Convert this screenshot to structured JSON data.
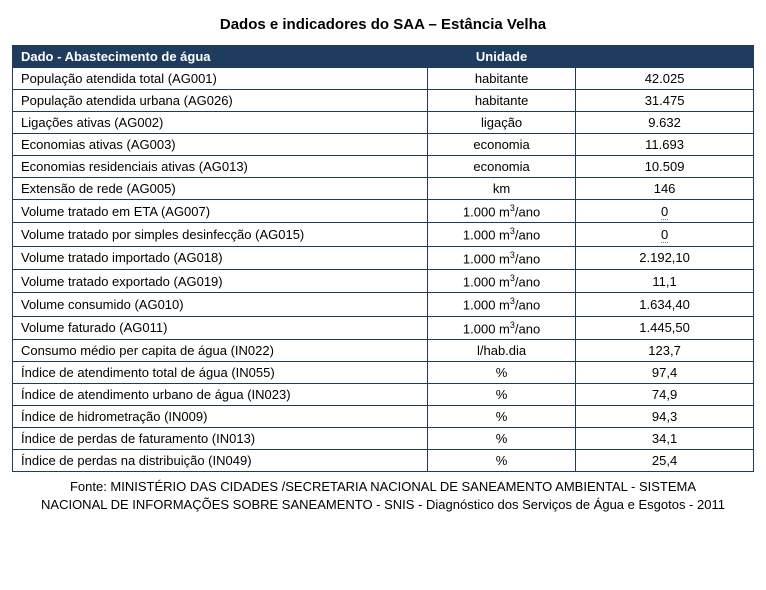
{
  "title": "Dados e indicadores do SAA – Estância Velha",
  "header": {
    "dado": "Dado - Abastecimento  de água",
    "unidade": "Unidade",
    "valor": ""
  },
  "colors": {
    "header_bg": "#1f3b5e",
    "header_text": "#ffffff",
    "border": "#1f3b5e",
    "body_bg": "#ffffff",
    "text": "#000000"
  },
  "typography": {
    "title_fontsize": 15,
    "cell_fontsize": 13,
    "source_fontsize": 13,
    "font_family": "Arial"
  },
  "columns": {
    "widths_pct": [
      56,
      20,
      24
    ],
    "align": [
      "left",
      "center",
      "center"
    ]
  },
  "rows": [
    {
      "dado": "População atendida total (AG001)",
      "unidade": "habitante",
      "valor": "42.025",
      "underlined": false,
      "sup": false
    },
    {
      "dado": "População atendida urbana (AG026)",
      "unidade": "habitante",
      "valor": "31.475",
      "underlined": false,
      "sup": false
    },
    {
      "dado": "Ligações ativas (AG002)",
      "unidade": "ligação",
      "valor": "9.632",
      "underlined": false,
      "sup": false
    },
    {
      "dado": "Economias ativas (AG003)",
      "unidade": "economia",
      "valor": "11.693",
      "underlined": false,
      "sup": false
    },
    {
      "dado": "Economias residenciais ativas (AG013)",
      "unidade": "economia",
      "valor": "10.509",
      "underlined": false,
      "sup": false
    },
    {
      "dado": "Extensão de rede (AG005)",
      "unidade": "km",
      "valor": "146",
      "underlined": false,
      "sup": false
    },
    {
      "dado": "Volume tratado em ETA (AG007)",
      "unidade": "1.000 m³/ano",
      "valor": "0",
      "underlined": true,
      "sup": true
    },
    {
      "dado": "Volume tratado por simples desinfecção (AG015)",
      "unidade": "1.000 m³/ano",
      "valor": "0",
      "underlined": true,
      "sup": true
    },
    {
      "dado": "Volume tratado importado (AG018)",
      "unidade": "1.000 m³/ano",
      "valor": "2.192,10",
      "underlined": false,
      "sup": true
    },
    {
      "dado": "Volume tratado exportado (AG019)",
      "unidade": "1.000 m³/ano",
      "valor": "11,1",
      "underlined": false,
      "sup": true
    },
    {
      "dado": "Volume consumido (AG010)",
      "unidade": "1.000 m³/ano",
      "valor": "1.634,40",
      "underlined": false,
      "sup": true
    },
    {
      "dado": "Volume faturado (AG011)",
      "unidade": "1.000 m³/ano",
      "valor": "1.445,50",
      "underlined": false,
      "sup": true
    },
    {
      "dado": "Consumo médio per capita de água (IN022)",
      "unidade": "l/hab.dia",
      "valor": "123,7",
      "underlined": false,
      "sup": false
    },
    {
      "dado": "Índice de atendimento total de água (IN055)",
      "unidade": "%",
      "valor": "97,4",
      "underlined": false,
      "sup": false
    },
    {
      "dado": "Índice de atendimento urbano de água (IN023)",
      "unidade": "%",
      "valor": "74,9",
      "underlined": false,
      "sup": false
    },
    {
      "dado": "Índice de hidrometração (IN009)",
      "unidade": "%",
      "valor": "94,3",
      "underlined": false,
      "sup": false
    },
    {
      "dado": "Índice de perdas de faturamento (IN013)",
      "unidade": "%",
      "valor": "34,1",
      "underlined": false,
      "sup": false
    },
    {
      "dado": "Índice de perdas na distribuição (IN049)",
      "unidade": "%",
      "valor": "25,4",
      "underlined": false,
      "sup": false
    }
  ],
  "source": "Fonte: MINISTÉRIO  DAS CIDADES /SECRETARIA NACIONAL  DE SANEAMENTO AMBIENTAL  - SISTEMA NACIONAL DE INFORMAÇÕES  SOBRE SANEAMENTO - SNIS  - Diagnóstico dos Serviços de Água e Esgotos - 2011"
}
